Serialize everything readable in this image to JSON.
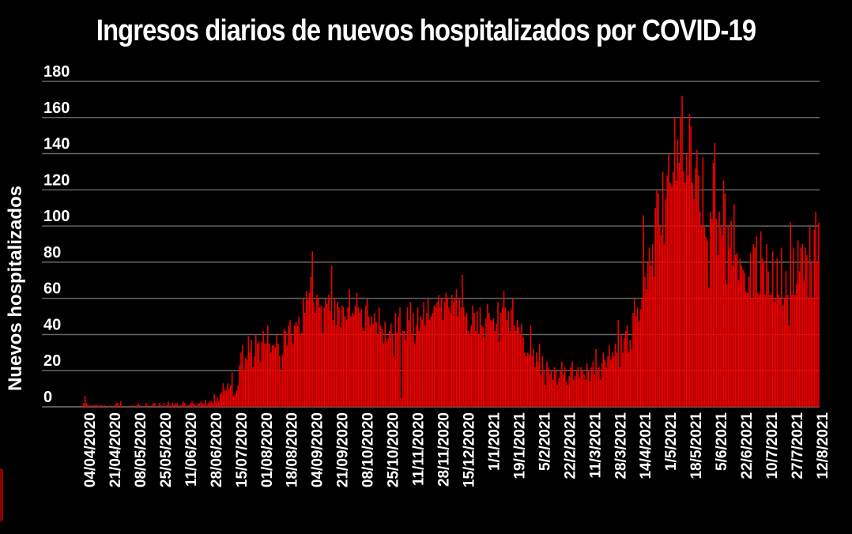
{
  "chart_data": {
    "type": "bar",
    "title": "Ingresos diarios de nuevos hospitalizados por COVID-19",
    "xlabel": "",
    "ylabel": "Nuevos hospitalizados",
    "ylim": [
      0,
      180
    ],
    "yticks": [
      0,
      20,
      40,
      60,
      80,
      100,
      120,
      140,
      160,
      180
    ],
    "grid": true,
    "bar_color": "#ee0000",
    "background": "#000000",
    "x_start": "04/04/2020",
    "x_tick_interval_days": 17,
    "xtick_labels": [
      "04/04/2020",
      "21/04/2020",
      "08/05/2020",
      "25/05/2020",
      "11/06/2020",
      "28/06/2020",
      "15/07/2020",
      "01/08/2020",
      "18/08/2020",
      "04/09/2020",
      "21/09/2020",
      "08/10/2020",
      "25/10/2020",
      "11/11/2020",
      "28/11/2020",
      "15/12/2020",
      "1/1/2021",
      "19/1/2021",
      "5/2/2021",
      "22/2/2021",
      "11/3/2021",
      "28/3/2021",
      "14/4/2021",
      "1/5/2021",
      "18/5/2021",
      "5/6/2021",
      "22/6/2021",
      "10/7/2021",
      "27/7/2021",
      "12/8/2021"
    ],
    "values": [
      2,
      6,
      2,
      1,
      0,
      1,
      0,
      1,
      1,
      1,
      0,
      1,
      1,
      0,
      1,
      0,
      0,
      0,
      1,
      0,
      0,
      1,
      2,
      2,
      0,
      3,
      0,
      0,
      0,
      0,
      0,
      0,
      1,
      0,
      1,
      0,
      1,
      2,
      1,
      0,
      0,
      0,
      2,
      1,
      0,
      0,
      1,
      2,
      2,
      0,
      0,
      2,
      1,
      0,
      2,
      0,
      1,
      3,
      1,
      0,
      2,
      1,
      2,
      2,
      0,
      1,
      1,
      3,
      2,
      0,
      1,
      1,
      2,
      3,
      2,
      1,
      0,
      2,
      2,
      3,
      2,
      2,
      4,
      1,
      2,
      3,
      3,
      2,
      7,
      3,
      5,
      3,
      7,
      8,
      13,
      9,
      9,
      13,
      10,
      12,
      19,
      6,
      7,
      9,
      12,
      23,
      30,
      34,
      20,
      27,
      26,
      39,
      30,
      37,
      22,
      28,
      40,
      35,
      36,
      25,
      36,
      42,
      35,
      35,
      45,
      35,
      30,
      34,
      34,
      33,
      40,
      35,
      28,
      20,
      29,
      43,
      42,
      34,
      45,
      48,
      40,
      35,
      45,
      47,
      45,
      50,
      40,
      41,
      60,
      52,
      64,
      59,
      63,
      72,
      86,
      58,
      52,
      62,
      60,
      55,
      56,
      41,
      55,
      60,
      57,
      62,
      53,
      78,
      48,
      60,
      45,
      58,
      55,
      44,
      56,
      55,
      50,
      48,
      55,
      65,
      50,
      52,
      51,
      56,
      63,
      55,
      52,
      54,
      44,
      42,
      56,
      60,
      50,
      45,
      50,
      46,
      52,
      47,
      40,
      55,
      45,
      43,
      35,
      47,
      36,
      38,
      42,
      46,
      40,
      28,
      52,
      41,
      50,
      55,
      5,
      42,
      42,
      37,
      55,
      48,
      58,
      40,
      52,
      35,
      45,
      55,
      42,
      50,
      48,
      58,
      45,
      52,
      60,
      48,
      50,
      52,
      56,
      55,
      58,
      62,
      55,
      60,
      48,
      58,
      63,
      60,
      55,
      52,
      62,
      58,
      60,
      65,
      50,
      60,
      55,
      73,
      55,
      50,
      52,
      42,
      40,
      45,
      56,
      52,
      42,
      53,
      40,
      55,
      45,
      44,
      38,
      49,
      57,
      52,
      48,
      47,
      49,
      42,
      46,
      58,
      36,
      52,
      55,
      64,
      55,
      48,
      53,
      42,
      54,
      60,
      45,
      42,
      48,
      44,
      40,
      46,
      38,
      30,
      28,
      30,
      29,
      45,
      28,
      32,
      22,
      30,
      25,
      35,
      18,
      28,
      20,
      12,
      25,
      22,
      18,
      20,
      15,
      22,
      20,
      12,
      16,
      20,
      25,
      18,
      22,
      14,
      12,
      17,
      22,
      25,
      15,
      17,
      20,
      22,
      16,
      22,
      20,
      18,
      15,
      24,
      20,
      14,
      22,
      25,
      18,
      32,
      20,
      22,
      15,
      24,
      30,
      26,
      22,
      28,
      34,
      26,
      30,
      28,
      35,
      30,
      48,
      22,
      40,
      30,
      38,
      42,
      45,
      30,
      37,
      32,
      52,
      60,
      50,
      55,
      47,
      54,
      60,
      106,
      72,
      65,
      80,
      88,
      78,
      90,
      72,
      110,
      120,
      118,
      100,
      95,
      130,
      90,
      115,
      128,
      140,
      124,
      122,
      130,
      160,
      125,
      148,
      135,
      160,
      172,
      130,
      124,
      140,
      128,
      162,
      155,
      124,
      115,
      132,
      142,
      128,
      108,
      100,
      138,
      100,
      94,
      92,
      66,
      108,
      104,
      135,
      146,
      104,
      84,
      108,
      100,
      95,
      125,
      118,
      68,
      100,
      88,
      103,
      78,
      112,
      84,
      85,
      70,
      82,
      78,
      76,
      74,
      64,
      63,
      72,
      85,
      60,
      90,
      88,
      94,
      63,
      62,
      97,
      82,
      80,
      62,
      90,
      75,
      62,
      62,
      86,
      58,
      60,
      82,
      62,
      60,
      88,
      56,
      60,
      75,
      62,
      45,
      102,
      62,
      88,
      62,
      68,
      92,
      75,
      88,
      90,
      70,
      88,
      84,
      60,
      100,
      80,
      60,
      98,
      108,
      80,
      102
    ]
  }
}
